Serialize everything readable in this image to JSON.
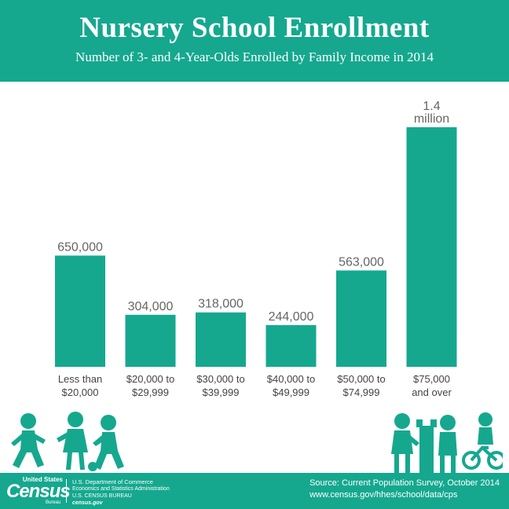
{
  "header": {
    "title": "Nursery School Enrollment",
    "subtitle": "Number of 3- and 4-Year-Olds Enrolled by Family Income in 2014"
  },
  "colors": {
    "accent": "#15a88f",
    "value_text": "#666666",
    "category_text": "#444444"
  },
  "chart_data": {
    "type": "bar",
    "title": "Nursery School Enrollment",
    "subtitle": "Number of 3- and 4-Year-Olds Enrolled by Family Income in 2014",
    "categories": [
      [
        "Less than",
        "$20,000"
      ],
      [
        "$20,000 to",
        "$29,999"
      ],
      [
        "$30,000 to",
        "$39,999"
      ],
      [
        "$40,000 to",
        "$49,999"
      ],
      [
        "$50,000 to",
        "$74,999"
      ],
      [
        "$75,000",
        "and over"
      ]
    ],
    "values": [
      650000,
      304000,
      318000,
      244000,
      563000,
      1400000
    ],
    "value_labels": [
      [
        "650,000"
      ],
      [
        "304,000"
      ],
      [
        "318,000"
      ],
      [
        "244,000"
      ],
      [
        "563,000"
      ],
      [
        "1.4",
        "million"
      ]
    ],
    "ylim": [
      0,
      1400000
    ],
    "grid": false,
    "xlabel": "",
    "ylabel": ""
  },
  "footer": {
    "logo_top": "United States",
    "logo_main": "Census",
    "logo_bottom": "Bureau",
    "dept_line1": "U.S. Department of Commerce",
    "dept_line2": "Economics and Statistics Administration",
    "dept_line3": "U.S. CENSUS BUREAU",
    "dept_line4": "census.gov",
    "source_line1": "Source: Current Population Survey, October 2014",
    "source_line2": "www.census.gov/hhes/school/data/cps"
  }
}
